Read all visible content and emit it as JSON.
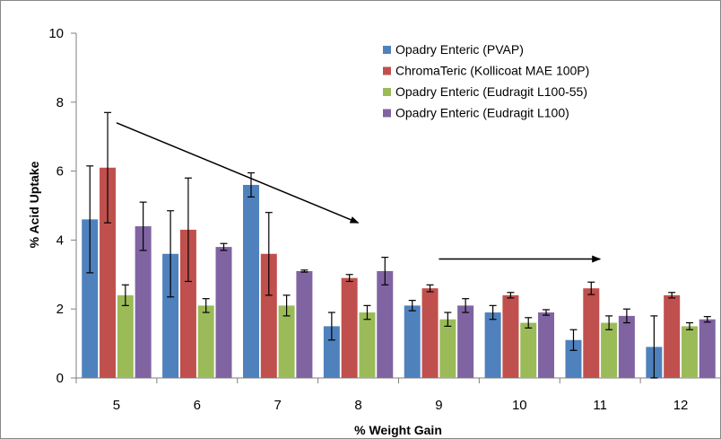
{
  "chart_data": {
    "type": "bar",
    "xlabel": "% Weight Gain",
    "ylabel": "% Acid Uptake",
    "ylim": [
      0,
      10
    ],
    "yticks": [
      0,
      2,
      4,
      6,
      8,
      10
    ],
    "categories": [
      "5",
      "6",
      "7",
      "8",
      "9",
      "10",
      "11",
      "12"
    ],
    "legend_position": "top-right",
    "series": [
      {
        "name": "Opadry Enteric (PVAP)",
        "color": "#4f81bd",
        "values": [
          4.6,
          3.6,
          5.6,
          1.5,
          2.1,
          1.9,
          1.1,
          0.9
        ],
        "errors": [
          1.55,
          1.25,
          0.35,
          0.4,
          0.15,
          0.2,
          0.3,
          0.9
        ]
      },
      {
        "name": "ChromaTeric (Kollicoat MAE 100P)",
        "color": "#c0504d",
        "values": [
          6.1,
          4.3,
          3.6,
          2.9,
          2.6,
          2.4,
          2.6,
          2.4
        ],
        "errors": [
          1.6,
          1.5,
          1.2,
          0.1,
          0.1,
          0.08,
          0.18,
          0.08
        ]
      },
      {
        "name": "Opadry Enteric (Eudragit L100-55)",
        "color": "#9bbb59",
        "values": [
          2.4,
          2.1,
          2.1,
          1.9,
          1.7,
          1.6,
          1.6,
          1.5
        ],
        "errors": [
          0.3,
          0.2,
          0.3,
          0.2,
          0.2,
          0.15,
          0.2,
          0.1
        ]
      },
      {
        "name": "Opadry Enteric (Eudragit L100)",
        "color": "#8064a2",
        "values": [
          4.4,
          3.8,
          3.1,
          3.1,
          2.1,
          1.9,
          1.8,
          1.7
        ],
        "errors": [
          0.7,
          0.1,
          0.03,
          0.4,
          0.2,
          0.08,
          0.2,
          0.08
        ]
      }
    ],
    "annotations": [
      {
        "type": "arrow",
        "description": "downward trend arrow",
        "from": {
          "x": "5",
          "y": 7.4
        },
        "to": {
          "x": "8",
          "y": 4.5
        }
      },
      {
        "type": "arrow",
        "description": "plateau arrow",
        "from": {
          "x": "9",
          "y": 3.45
        },
        "to": {
          "x": "11",
          "y": 3.45
        }
      }
    ]
  }
}
